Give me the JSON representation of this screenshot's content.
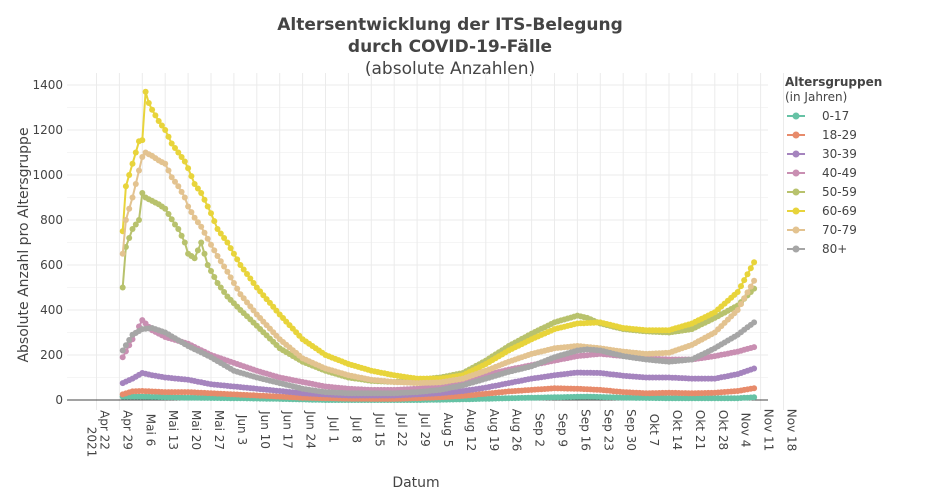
{
  "chart_data": {
    "type": "line",
    "title_line1": "Altersentwicklung der ITS-Belegung",
    "title_line2": "durch COVID-19-Fälle",
    "subtitle": "(absolute Anzahlen)",
    "xlabel": "Datum",
    "ylabel": "Absolute Anzahl pro Altersgruppe",
    "ylim": [
      -50,
      1420
    ],
    "yticks": [
      0,
      200,
      400,
      600,
      800,
      1000,
      1200,
      1400
    ],
    "x_ticks": [
      {
        "day": 0,
        "label": "Apr 22"
      },
      {
        "day": 7,
        "label": "Apr 29"
      },
      {
        "day": 14,
        "label": "Mai 6"
      },
      {
        "day": 21,
        "label": "Mai 13"
      },
      {
        "day": 28,
        "label": "Mai 20"
      },
      {
        "day": 35,
        "label": "Mai 27"
      },
      {
        "day": 42,
        "label": "Jun 3"
      },
      {
        "day": 49,
        "label": "Jun 10"
      },
      {
        "day": 56,
        "label": "Jun 17"
      },
      {
        "day": 63,
        "label": "Jun 24"
      },
      {
        "day": 70,
        "label": "Jul 1"
      },
      {
        "day": 77,
        "label": "Jul 8"
      },
      {
        "day": 84,
        "label": "Jul 15"
      },
      {
        "day": 91,
        "label": "Jul 22"
      },
      {
        "day": 98,
        "label": "Jul 29"
      },
      {
        "day": 105,
        "label": "Aug 5"
      },
      {
        "day": 112,
        "label": "Aug 12"
      },
      {
        "day": 119,
        "label": "Aug 19"
      },
      {
        "day": 126,
        "label": "Aug 26"
      },
      {
        "day": 133,
        "label": "Sep 2"
      },
      {
        "day": 140,
        "label": "Sep 9"
      },
      {
        "day": 147,
        "label": "Sep 16"
      },
      {
        "day": 154,
        "label": "Sep 23"
      },
      {
        "day": 161,
        "label": "Sep 30"
      },
      {
        "day": 168,
        "label": "Okt 7"
      },
      {
        "day": 175,
        "label": "Okt 14"
      },
      {
        "day": 182,
        "label": "Okt 21"
      },
      {
        "day": 189,
        "label": "Okt 28"
      },
      {
        "day": 196,
        "label": "Nov 4"
      },
      {
        "day": 203,
        "label": "Nov 11"
      },
      {
        "day": 210,
        "label": "Nov 18"
      }
    ],
    "year_label": "2021",
    "x_domain_days": [
      -4,
      210
    ],
    "legend_title": "Altersgruppen",
    "legend_subtitle": "(in Jahren)",
    "legend_position": "right",
    "series": [
      {
        "name": "0-17",
        "color": "#66c2a5",
        "points": [
          [
            8,
            15
          ],
          [
            14,
            15
          ],
          [
            28,
            10
          ],
          [
            42,
            8
          ],
          [
            56,
            5
          ],
          [
            70,
            0
          ],
          [
            84,
            0
          ],
          [
            98,
            0
          ],
          [
            112,
            3
          ],
          [
            126,
            8
          ],
          [
            140,
            12
          ],
          [
            150,
            15
          ],
          [
            161,
            10
          ],
          [
            175,
            8
          ],
          [
            189,
            8
          ],
          [
            196,
            8
          ],
          [
            201,
            12
          ]
        ]
      },
      {
        "name": "18-29",
        "color": "#e78b6b",
        "points": [
          [
            8,
            25
          ],
          [
            11,
            38
          ],
          [
            14,
            40
          ],
          [
            21,
            35
          ],
          [
            28,
            35
          ],
          [
            35,
            30
          ],
          [
            42,
            25
          ],
          [
            49,
            20
          ],
          [
            56,
            15
          ],
          [
            63,
            10
          ],
          [
            70,
            8
          ],
          [
            77,
            6
          ],
          [
            84,
            5
          ],
          [
            91,
            5
          ],
          [
            98,
            8
          ],
          [
            105,
            12
          ],
          [
            112,
            18
          ],
          [
            119,
            28
          ],
          [
            126,
            38
          ],
          [
            133,
            45
          ],
          [
            140,
            52
          ],
          [
            147,
            50
          ],
          [
            154,
            45
          ],
          [
            161,
            35
          ],
          [
            168,
            30
          ],
          [
            175,
            32
          ],
          [
            182,
            30
          ],
          [
            189,
            32
          ],
          [
            196,
            40
          ],
          [
            201,
            52
          ]
        ]
      },
      {
        "name": "30-39",
        "color": "#a584be",
        "points": [
          [
            8,
            75
          ],
          [
            11,
            95
          ],
          [
            14,
            120
          ],
          [
            17,
            110
          ],
          [
            21,
            100
          ],
          [
            28,
            90
          ],
          [
            35,
            70
          ],
          [
            42,
            60
          ],
          [
            49,
            50
          ],
          [
            56,
            40
          ],
          [
            63,
            30
          ],
          [
            70,
            25
          ],
          [
            77,
            20
          ],
          [
            84,
            20
          ],
          [
            91,
            20
          ],
          [
            98,
            25
          ],
          [
            105,
            30
          ],
          [
            112,
            40
          ],
          [
            119,
            55
          ],
          [
            126,
            75
          ],
          [
            133,
            95
          ],
          [
            140,
            110
          ],
          [
            147,
            122
          ],
          [
            154,
            120
          ],
          [
            161,
            108
          ],
          [
            168,
            100
          ],
          [
            175,
            100
          ],
          [
            182,
            95
          ],
          [
            189,
            95
          ],
          [
            196,
            115
          ],
          [
            201,
            140
          ]
        ]
      },
      {
        "name": "40-49",
        "color": "#c98fb2",
        "points": [
          [
            8,
            190
          ],
          [
            11,
            270
          ],
          [
            14,
            355
          ],
          [
            17,
            310
          ],
          [
            21,
            280
          ],
          [
            28,
            250
          ],
          [
            35,
            200
          ],
          [
            42,
            165
          ],
          [
            49,
            130
          ],
          [
            56,
            100
          ],
          [
            63,
            80
          ],
          [
            70,
            60
          ],
          [
            77,
            50
          ],
          [
            84,
            45
          ],
          [
            91,
            45
          ],
          [
            98,
            50
          ],
          [
            105,
            60
          ],
          [
            112,
            80
          ],
          [
            119,
            110
          ],
          [
            126,
            135
          ],
          [
            133,
            155
          ],
          [
            140,
            175
          ],
          [
            147,
            195
          ],
          [
            154,
            205
          ],
          [
            161,
            195
          ],
          [
            168,
            185
          ],
          [
            175,
            180
          ],
          [
            182,
            180
          ],
          [
            189,
            195
          ],
          [
            196,
            215
          ],
          [
            201,
            235
          ]
        ]
      },
      {
        "name": "50-59",
        "color": "#b8c26d",
        "points": [
          [
            8,
            500
          ],
          [
            9,
            680
          ],
          [
            11,
            760
          ],
          [
            13,
            800
          ],
          [
            14,
            920
          ],
          [
            15,
            900
          ],
          [
            17,
            885
          ],
          [
            19,
            870
          ],
          [
            21,
            850
          ],
          [
            24,
            780
          ],
          [
            25,
            760
          ],
          [
            27,
            700
          ],
          [
            28,
            650
          ],
          [
            30,
            630
          ],
          [
            32,
            700
          ],
          [
            34,
            600
          ],
          [
            37,
            520
          ],
          [
            40,
            460
          ],
          [
            44,
            400
          ],
          [
            49,
            330
          ],
          [
            56,
            230
          ],
          [
            63,
            170
          ],
          [
            70,
            130
          ],
          [
            77,
            100
          ],
          [
            84,
            85
          ],
          [
            91,
            80
          ],
          [
            98,
            90
          ],
          [
            105,
            100
          ],
          [
            112,
            120
          ],
          [
            119,
            175
          ],
          [
            126,
            240
          ],
          [
            133,
            295
          ],
          [
            140,
            345
          ],
          [
            147,
            375
          ],
          [
            150,
            365
          ],
          [
            154,
            340
          ],
          [
            161,
            315
          ],
          [
            168,
            305
          ],
          [
            175,
            300
          ],
          [
            182,
            315
          ],
          [
            189,
            365
          ],
          [
            196,
            420
          ],
          [
            201,
            495
          ]
        ]
      },
      {
        "name": "60-69",
        "color": "#e8d43b",
        "points": [
          [
            8,
            750
          ],
          [
            9,
            950
          ],
          [
            11,
            1050
          ],
          [
            13,
            1150
          ],
          [
            14,
            1155
          ],
          [
            15,
            1370
          ],
          [
            16,
            1320
          ],
          [
            17,
            1290
          ],
          [
            19,
            1240
          ],
          [
            21,
            1200
          ],
          [
            23,
            1140
          ],
          [
            25,
            1100
          ],
          [
            27,
            1060
          ],
          [
            28,
            1030
          ],
          [
            30,
            960
          ],
          [
            32,
            920
          ],
          [
            35,
            830
          ],
          [
            37,
            760
          ],
          [
            40,
            700
          ],
          [
            44,
            600
          ],
          [
            49,
            500
          ],
          [
            56,
            380
          ],
          [
            63,
            270
          ],
          [
            70,
            200
          ],
          [
            77,
            160
          ],
          [
            84,
            130
          ],
          [
            91,
            110
          ],
          [
            98,
            95
          ],
          [
            105,
            95
          ],
          [
            112,
            110
          ],
          [
            119,
            160
          ],
          [
            126,
            220
          ],
          [
            133,
            270
          ],
          [
            140,
            315
          ],
          [
            147,
            340
          ],
          [
            154,
            345
          ],
          [
            161,
            320
          ],
          [
            168,
            310
          ],
          [
            175,
            310
          ],
          [
            182,
            340
          ],
          [
            189,
            390
          ],
          [
            196,
            480
          ],
          [
            201,
            612
          ]
        ]
      },
      {
        "name": "70-79",
        "color": "#e3c390",
        "points": [
          [
            8,
            650
          ],
          [
            9,
            800
          ],
          [
            11,
            900
          ],
          [
            13,
            1020
          ],
          [
            14,
            1080
          ],
          [
            15,
            1100
          ],
          [
            17,
            1085
          ],
          [
            19,
            1065
          ],
          [
            21,
            1050
          ],
          [
            23,
            990
          ],
          [
            25,
            950
          ],
          [
            27,
            900
          ],
          [
            28,
            860
          ],
          [
            30,
            810
          ],
          [
            32,
            770
          ],
          [
            35,
            690
          ],
          [
            37,
            640
          ],
          [
            40,
            570
          ],
          [
            44,
            470
          ],
          [
            49,
            380
          ],
          [
            56,
            270
          ],
          [
            63,
            185
          ],
          [
            70,
            140
          ],
          [
            77,
            110
          ],
          [
            84,
            90
          ],
          [
            91,
            80
          ],
          [
            98,
            75
          ],
          [
            105,
            78
          ],
          [
            112,
            95
          ],
          [
            119,
            130
          ],
          [
            126,
            170
          ],
          [
            133,
            205
          ],
          [
            140,
            230
          ],
          [
            147,
            240
          ],
          [
            154,
            230
          ],
          [
            161,
            215
          ],
          [
            168,
            205
          ],
          [
            175,
            210
          ],
          [
            182,
            245
          ],
          [
            189,
            300
          ],
          [
            196,
            400
          ],
          [
            201,
            530
          ]
        ]
      },
      {
        "name": "80+",
        "color": "#a6a6a6",
        "points": [
          [
            8,
            220
          ],
          [
            11,
            290
          ],
          [
            14,
            315
          ],
          [
            17,
            320
          ],
          [
            21,
            300
          ],
          [
            28,
            240
          ],
          [
            35,
            190
          ],
          [
            42,
            130
          ],
          [
            49,
            100
          ],
          [
            56,
            75
          ],
          [
            63,
            50
          ],
          [
            70,
            35
          ],
          [
            77,
            30
          ],
          [
            84,
            30
          ],
          [
            91,
            30
          ],
          [
            98,
            35
          ],
          [
            105,
            45
          ],
          [
            112,
            65
          ],
          [
            119,
            95
          ],
          [
            126,
            125
          ],
          [
            133,
            150
          ],
          [
            140,
            190
          ],
          [
            147,
            220
          ],
          [
            150,
            225
          ],
          [
            154,
            220
          ],
          [
            161,
            195
          ],
          [
            168,
            180
          ],
          [
            175,
            170
          ],
          [
            182,
            180
          ],
          [
            189,
            230
          ],
          [
            196,
            290
          ],
          [
            201,
            345
          ]
        ]
      }
    ]
  }
}
